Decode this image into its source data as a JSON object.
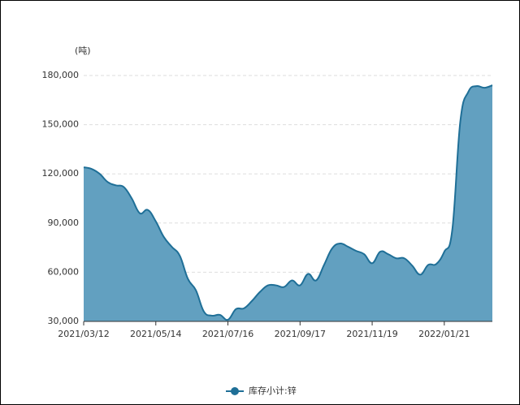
{
  "chart_data": {
    "type": "area",
    "y_label": "(吨)",
    "categories": [
      "2021/03/12",
      null,
      null,
      null,
      null,
      null,
      null,
      null,
      null,
      "2021/05/14",
      null,
      null,
      null,
      null,
      null,
      null,
      null,
      null,
      "2021/07/16",
      null,
      null,
      null,
      null,
      null,
      null,
      null,
      null,
      "2021/09/17",
      null,
      null,
      null,
      null,
      null,
      null,
      null,
      null,
      "2021/11/19",
      null,
      null,
      null,
      null,
      null,
      null,
      null,
      null,
      "2022/01/21",
      null,
      null,
      null,
      null,
      null,
      null
    ],
    "series": [
      {
        "name": "库存小计:锌",
        "color": "#1f6f97",
        "fill": "#62a0c0",
        "values": [
          124000,
          123000,
          120000,
          115000,
          113000,
          112000,
          105000,
          96000,
          98000,
          91000,
          81500,
          75500,
          70000,
          56000,
          49000,
          36000,
          33500,
          34000,
          31000,
          37500,
          38000,
          42500,
          48000,
          52000,
          52000,
          51000,
          55000,
          52000,
          59000,
          55000,
          64500,
          74500,
          77500,
          75500,
          73000,
          71000,
          65500,
          72500,
          71000,
          68500,
          68500,
          64000,
          58500,
          64500,
          65000,
          72500,
          86000,
          152000,
          170000,
          173500,
          172500,
          174000
        ]
      }
    ],
    "ylim": [
      30000,
      180000
    ],
    "yticks": [
      {
        "value": 30000,
        "label": "30,000"
      },
      {
        "value": 60000,
        "label": "60,000"
      },
      {
        "value": 90000,
        "label": "90,000"
      },
      {
        "value": 120000,
        "label": "120,000"
      },
      {
        "value": 150000,
        "label": "150,000"
      },
      {
        "value": 180000,
        "label": "180,000"
      }
    ],
    "grid": true,
    "legend": "bottom"
  }
}
